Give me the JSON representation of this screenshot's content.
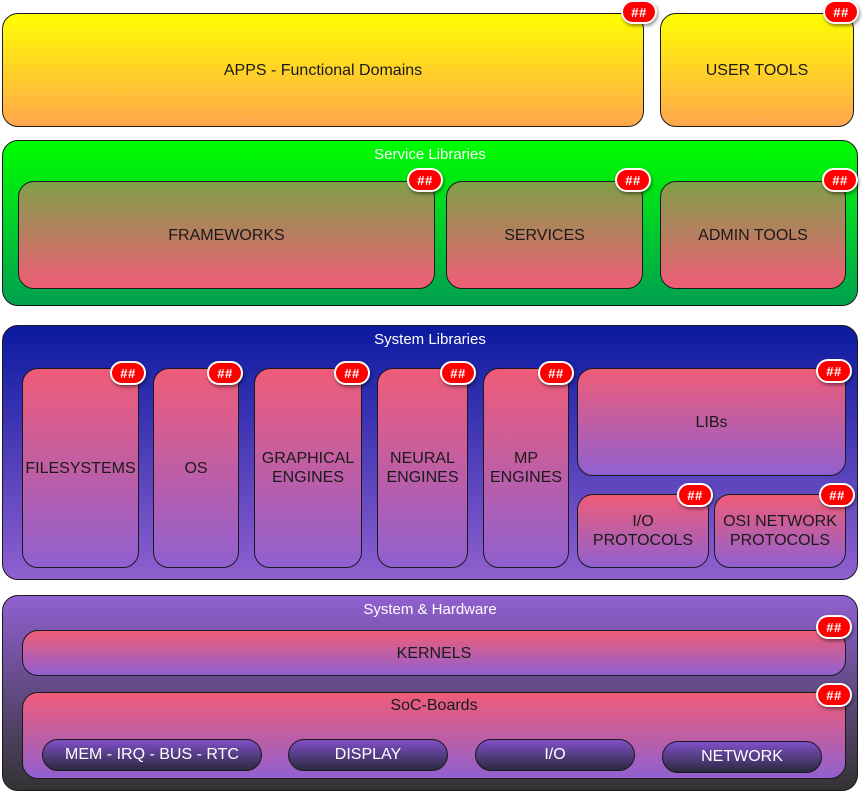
{
  "badge_text": "##",
  "top": {
    "apps": "APPS - Functional Domains",
    "user_tools": "USER TOOLS"
  },
  "service_libraries": {
    "title": "Service Libraries",
    "frameworks": "FRAMEWORKS",
    "services": "SERVICES",
    "admin_tools": "ADMIN TOOLS"
  },
  "system_libraries": {
    "title": "System Libraries",
    "filesystems": "FILESYSTEMS",
    "os": "OS",
    "graphical_engines": "GRAPHICAL\nENGINES",
    "neural_engines": "NEURAL\nENGINES",
    "mp_engines": "MP\nENGINES",
    "libs": "LIBs",
    "io_protocols": "I/O\nPROTOCOLS",
    "osi_network_protocols": "OSI NETWORK\nPROTOCOLS"
  },
  "system_hardware": {
    "title": "System & Hardware",
    "kernels": "KERNELS",
    "soc_boards": "SoC-Boards",
    "pills": [
      "MEM - IRQ - BUS - RTC",
      "DISPLAY",
      "I/O",
      "NETWORK"
    ]
  },
  "colors": {
    "yellow_top": "#ffff00",
    "yellow_bottom": "#ffa64d",
    "green_top": "#00ff00",
    "green_bottom": "#00a050",
    "navy": "#0a1aa0",
    "pink": "#f05c78",
    "purple": "#9060d0",
    "badge_red": "#ff0000"
  }
}
